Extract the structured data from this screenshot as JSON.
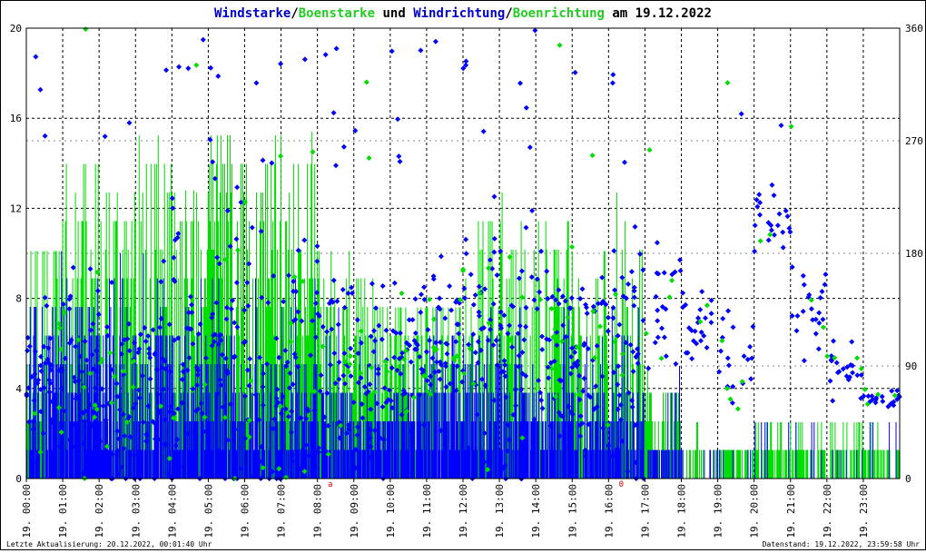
{
  "chart_data": {
    "type": "line",
    "title_parts": [
      {
        "text": "Windstarke",
        "color": "#0000cc"
      },
      {
        "text": "/",
        "color": "#000000"
      },
      {
        "text": "Boenstarke",
        "color": "#22cc22"
      },
      {
        "text": " und ",
        "color": "#000000"
      },
      {
        "text": "Windrichtung",
        "color": "#0000cc"
      },
      {
        "text": "/",
        "color": "#000000"
      },
      {
        "text": "Boenrichtung",
        "color": "#22cc22"
      },
      {
        "text": " am 19.12.2022",
        "color": "#000000"
      }
    ],
    "ylim_left": [
      0,
      20
    ],
    "ylim_right": [
      0,
      360
    ],
    "y_ticks_left": [
      0,
      4,
      8,
      12,
      16,
      20
    ],
    "y_ticks_right": [
      0,
      90,
      180,
      270,
      360
    ],
    "x_tick_labels": [
      "19. 00:00",
      "19. 01:00",
      "19. 02:00",
      "19. 03:00",
      "19. 04:00",
      "19. 05:00",
      "19. 06:00",
      "19. 07:00",
      "19. 08:00",
      "19. 09:00",
      "19. 10:00",
      "19. 11:00",
      "19. 12:00",
      "19. 13:00",
      "19. 14:00",
      "19. 15:00",
      "19. 16:00",
      "19. 17:00",
      "19. 18:00",
      "19. 19:00",
      "19. 20:00",
      "19. 21:00",
      "19. 22:00",
      "19. 23:00"
    ],
    "xlim_hours": [
      0,
      24
    ],
    "grid": true,
    "colors": {
      "wind": "#0000ff",
      "gust": "#00dd00",
      "grid": "#000000",
      "marker": "#cc0000"
    },
    "markers": [
      {
        "hour": 8.35,
        "text": "a"
      },
      {
        "hour": 16.35,
        "text": "0"
      }
    ],
    "series": [
      {
        "name": "Windstarke",
        "kind": "wind_speed",
        "hourly_mean": [
          4.5,
          4.2,
          3.5,
          3.8,
          3.4,
          3.6,
          3.0,
          3.2,
          2.4,
          1.8,
          2.5,
          2.8,
          3.2,
          2.8,
          2.4,
          2.6,
          2.2,
          0.8,
          0.1,
          0.2,
          0.3,
          0.3,
          0.4,
          0.2
        ],
        "hourly_max": [
          10.1,
          10.0,
          10.0,
          10.0,
          10.0,
          10.0,
          10.0,
          10.0,
          7.6,
          6.3,
          6.3,
          7.6,
          7.6,
          7.6,
          7.6,
          6.3,
          7.6,
          5.0,
          1.3,
          1.3,
          2.5,
          2.5,
          2.5,
          2.5
        ]
      },
      {
        "name": "Boenstarke",
        "kind": "gust_speed",
        "hourly_mean": [
          7.6,
          8.0,
          7.6,
          8.5,
          8.0,
          9.0,
          8.0,
          9.0,
          6.3,
          5.5,
          5.0,
          5.5,
          6.3,
          6.3,
          6.3,
          5.5,
          5.5,
          2.5,
          0.6,
          0.8,
          1.3,
          1.3,
          1.3,
          1.0
        ],
        "hourly_max": [
          10.1,
          15.4,
          12.8,
          18.0,
          12.8,
          15.4,
          15.4,
          15.4,
          10.1,
          10.1,
          7.6,
          7.6,
          12.8,
          12.8,
          12.8,
          10.1,
          12.8,
          5.0,
          2.5,
          2.5,
          2.5,
          2.5,
          2.5,
          2.5
        ]
      },
      {
        "name": "Windrichtung",
        "kind": "direction",
        "hourly_mean": [
          85,
          75,
          70,
          80,
          95,
          110,
          75,
          80,
          85,
          70,
          95,
          110,
          110,
          95,
          110,
          90,
          100,
          140,
          120,
          95,
          210,
          140,
          90,
          65
        ],
        "hourly_spread": [
          80,
          100,
          110,
          120,
          150,
          170,
          140,
          120,
          100,
          100,
          70,
          80,
          120,
          130,
          110,
          100,
          130,
          60,
          40,
          60,
          40,
          50,
          30,
          15
        ]
      }
    ]
  },
  "footer": {
    "left": "Letzte Aktualisierung: 20.12.2022, 00:01:40 Uhr",
    "right": "Datenstand: 19.12.2022, 23:59:58 Uhr"
  }
}
